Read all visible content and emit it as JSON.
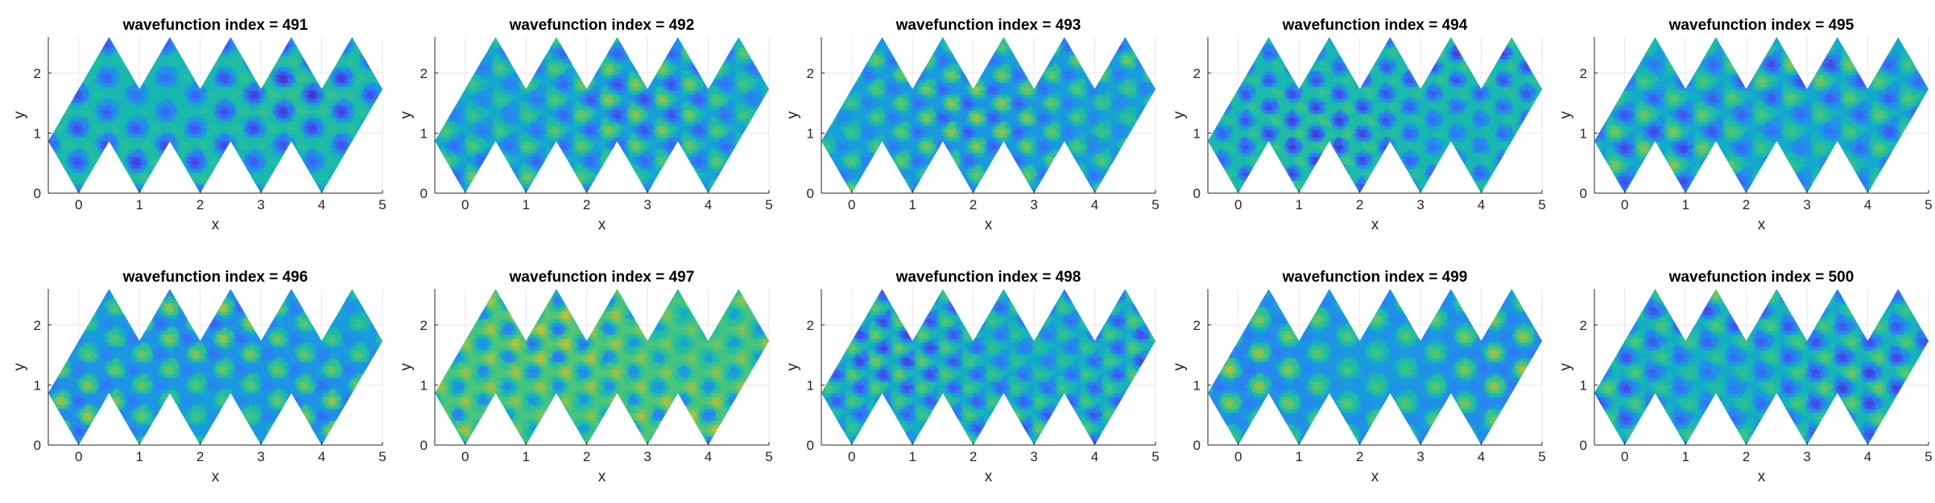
{
  "figure": {
    "background": "#ffffff"
  },
  "colormap": [
    "#3E26A8",
    "#4743E7",
    "#2F7CF6",
    "#12A6D4",
    "#1CBCA8",
    "#56C671",
    "#B8BE39",
    "#F9D92A"
  ],
  "chart_data": [
    {
      "type": "heatmap",
      "title": "wavefunction index = 491",
      "xlabel": "x",
      "ylabel": "y",
      "xlim": [
        -0.5,
        5
      ],
      "ylim": [
        0,
        2.6
      ],
      "xticks": [
        "0",
        "1",
        "2",
        "3",
        "4",
        "5"
      ],
      "yticks": [
        "0",
        "1",
        "2"
      ],
      "grid": true
    },
    {
      "type": "heatmap",
      "title": "wavefunction index = 492",
      "xlabel": "x",
      "ylabel": "y",
      "xlim": [
        -0.5,
        5
      ],
      "ylim": [
        0,
        2.6
      ],
      "xticks": [
        "0",
        "1",
        "2",
        "3",
        "4",
        "5"
      ],
      "yticks": [
        "0",
        "1",
        "2"
      ],
      "grid": true
    },
    {
      "type": "heatmap",
      "title": "wavefunction index = 493",
      "xlabel": "x",
      "ylabel": "y",
      "xlim": [
        -0.5,
        5
      ],
      "ylim": [
        0,
        2.6
      ],
      "xticks": [
        "0",
        "1",
        "2",
        "3",
        "4",
        "5"
      ],
      "yticks": [
        "0",
        "1",
        "2"
      ],
      "grid": true
    },
    {
      "type": "heatmap",
      "title": "wavefunction index = 494",
      "xlabel": "x",
      "ylabel": "y",
      "xlim": [
        -0.5,
        5
      ],
      "ylim": [
        0,
        2.6
      ],
      "xticks": [
        "0",
        "1",
        "2",
        "3",
        "4",
        "5"
      ],
      "yticks": [
        "0",
        "1",
        "2"
      ],
      "grid": true
    },
    {
      "type": "heatmap",
      "title": "wavefunction index = 495",
      "xlabel": "x",
      "ylabel": "y",
      "xlim": [
        -0.5,
        5
      ],
      "ylim": [
        0,
        2.6
      ],
      "xticks": [
        "0",
        "1",
        "2",
        "3",
        "4",
        "5"
      ],
      "yticks": [
        "0",
        "1",
        "2"
      ],
      "grid": true
    },
    {
      "type": "heatmap",
      "title": "wavefunction index = 496",
      "xlabel": "x",
      "ylabel": "y",
      "xlim": [
        -0.5,
        5
      ],
      "ylim": [
        0,
        2.6
      ],
      "xticks": [
        "0",
        "1",
        "2",
        "3",
        "4",
        "5"
      ],
      "yticks": [
        "0",
        "1",
        "2"
      ],
      "grid": true
    },
    {
      "type": "heatmap",
      "title": "wavefunction index = 497",
      "xlabel": "x",
      "ylabel": "y",
      "xlim": [
        -0.5,
        5
      ],
      "ylim": [
        0,
        2.6
      ],
      "xticks": [
        "0",
        "1",
        "2",
        "3",
        "4",
        "5"
      ],
      "yticks": [
        "0",
        "1",
        "2"
      ],
      "grid": true
    },
    {
      "type": "heatmap",
      "title": "wavefunction index = 498",
      "xlabel": "x",
      "ylabel": "y",
      "xlim": [
        -0.5,
        5
      ],
      "ylim": [
        0,
        2.6
      ],
      "xticks": [
        "0",
        "1",
        "2",
        "3",
        "4",
        "5"
      ],
      "yticks": [
        "0",
        "1",
        "2"
      ],
      "grid": true
    },
    {
      "type": "heatmap",
      "title": "wavefunction index = 499",
      "xlabel": "x",
      "ylabel": "y",
      "xlim": [
        -0.5,
        5
      ],
      "ylim": [
        0,
        2.6
      ],
      "xticks": [
        "0",
        "1",
        "2",
        "3",
        "4",
        "5"
      ],
      "yticks": [
        "0",
        "1",
        "2"
      ],
      "grid": true
    },
    {
      "type": "heatmap",
      "title": "wavefunction index = 500",
      "xlabel": "x",
      "ylabel": "y",
      "xlim": [
        -0.5,
        5
      ],
      "ylim": [
        0,
        2.6
      ],
      "xticks": [
        "0",
        "1",
        "2",
        "3",
        "4",
        "5"
      ],
      "yticks": [
        "0",
        "1",
        "2"
      ],
      "grid": true
    }
  ]
}
